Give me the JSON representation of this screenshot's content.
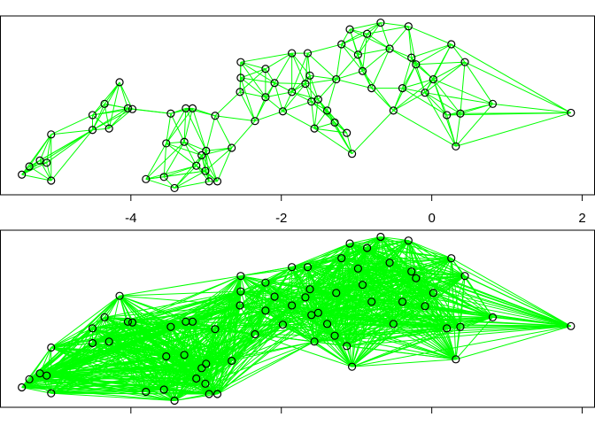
{
  "chart_data": [
    {
      "type": "network",
      "color": "#00ff00",
      "edge_neighbors": 6,
      "x": [
        -5.45,
        -5.35,
        -5.21,
        -5.12,
        -5.06,
        -5.06,
        -4.51,
        -4.51,
        -4.35,
        -4.15,
        -4.04,
        -3.98,
        -4.29,
        -3.8,
        -3.56,
        -3.53,
        -3.47,
        -3.42,
        -3.29,
        -3.27,
        -3.18,
        -3.13,
        -3.06,
        -3.01,
        -3.0,
        -2.96,
        -2.85,
        -2.88,
        -2.66,
        -2.54,
        -2.54,
        -2.55,
        -2.35,
        -2.21,
        -2.09,
        -1.98,
        -1.86,
        -1.68,
        -1.62,
        -1.6,
        -1.56,
        -1.51,
        -1.39,
        -1.29,
        -1.2,
        -1.09,
        -1.13,
        -1.06,
        -0.98,
        -0.92,
        -0.86,
        -0.68,
        -0.56,
        -0.51,
        -0.39,
        -0.31,
        -0.27,
        -0.21,
        -0.09,
        0.02,
        0.26,
        0.32,
        0.38,
        0.44,
        0.2,
        0.81,
        1.85,
        -1.86,
        -1.65,
        -2.21,
        -0.8,
        -1.27
      ],
      "y": [
        -0.93,
        -0.82,
        -0.74,
        -0.77,
        -1.01,
        -0.39,
        -0.13,
        -0.33,
        0.02,
        0.31,
        -0.04,
        -0.05,
        -0.31,
        -0.99,
        -0.96,
        -0.51,
        -0.11,
        -1.11,
        -0.49,
        -0.04,
        -0.04,
        -0.81,
        -0.67,
        -0.88,
        -0.61,
        -1.02,
        -1.02,
        -0.14,
        -0.57,
        0.58,
        0.37,
        0.18,
        -0.21,
        0.11,
        0.3,
        -0.08,
        0.18,
        0.29,
        0.4,
        0.05,
        -0.31,
        0.08,
        -0.07,
        -0.23,
        0.82,
        1.02,
        -0.37,
        -0.65,
        0.68,
        0.46,
        0.96,
        1.11,
        0.76,
        -0.07,
        0.23,
        1.06,
        0.64,
        0.55,
        0.17,
        0.35,
        0.82,
        -0.55,
        -0.11,
        0.58,
        -0.13,
        0.02,
        -0.1,
        0.7,
        0.7,
        0.49,
        0.23,
        0.35
      ],
      "xlim": [
        -5.74,
        2.17
      ],
      "ylim": [
        -1.2,
        1.2
      ],
      "xticks": [
        -4,
        -2,
        0,
        2
      ],
      "tick_labels": true
    },
    {
      "type": "network",
      "color": "#00ff00",
      "edge_neighbors": 30,
      "x": [
        -5.45,
        -5.35,
        -5.21,
        -5.12,
        -5.06,
        -5.06,
        -4.51,
        -4.51,
        -4.35,
        -4.15,
        -4.04,
        -3.98,
        -4.29,
        -3.8,
        -3.56,
        -3.53,
        -3.47,
        -3.42,
        -3.29,
        -3.27,
        -3.18,
        -3.13,
        -3.06,
        -3.01,
        -3.0,
        -2.96,
        -2.85,
        -2.88,
        -2.66,
        -2.54,
        -2.54,
        -2.55,
        -2.35,
        -2.21,
        -2.09,
        -1.98,
        -1.86,
        -1.68,
        -1.62,
        -1.6,
        -1.56,
        -1.51,
        -1.39,
        -1.29,
        -1.2,
        -1.09,
        -1.13,
        -1.06,
        -0.98,
        -0.92,
        -0.86,
        -0.68,
        -0.56,
        -0.51,
        -0.39,
        -0.31,
        -0.27,
        -0.21,
        -0.09,
        0.02,
        0.26,
        0.32,
        0.38,
        0.44,
        0.2,
        0.81,
        1.85,
        -1.86,
        -1.65,
        -2.21,
        -0.8,
        -1.27
      ],
      "y": [
        -0.93,
        -0.82,
        -0.74,
        -0.77,
        -1.01,
        -0.39,
        -0.13,
        -0.33,
        0.02,
        0.31,
        -0.04,
        -0.05,
        -0.31,
        -0.99,
        -0.96,
        -0.51,
        -0.11,
        -1.11,
        -0.49,
        -0.04,
        -0.04,
        -0.81,
        -0.67,
        -0.88,
        -0.61,
        -1.02,
        -1.02,
        -0.14,
        -0.57,
        0.58,
        0.37,
        0.18,
        -0.21,
        0.11,
        0.3,
        -0.08,
        0.18,
        0.29,
        0.4,
        0.05,
        -0.31,
        0.08,
        -0.07,
        -0.23,
        0.82,
        1.02,
        -0.37,
        -0.65,
        0.68,
        0.46,
        0.96,
        1.11,
        0.76,
        -0.07,
        0.23,
        1.06,
        0.64,
        0.55,
        0.17,
        0.35,
        0.82,
        -0.55,
        -0.11,
        0.58,
        -0.13,
        0.02,
        -0.1,
        0.7,
        0.7,
        0.49,
        0.23,
        0.35
      ],
      "xlim": [
        -5.74,
        2.17
      ],
      "ylim": [
        -1.2,
        1.2
      ],
      "xticks": [
        -4,
        -2,
        0,
        2
      ],
      "tick_labels": false
    }
  ]
}
